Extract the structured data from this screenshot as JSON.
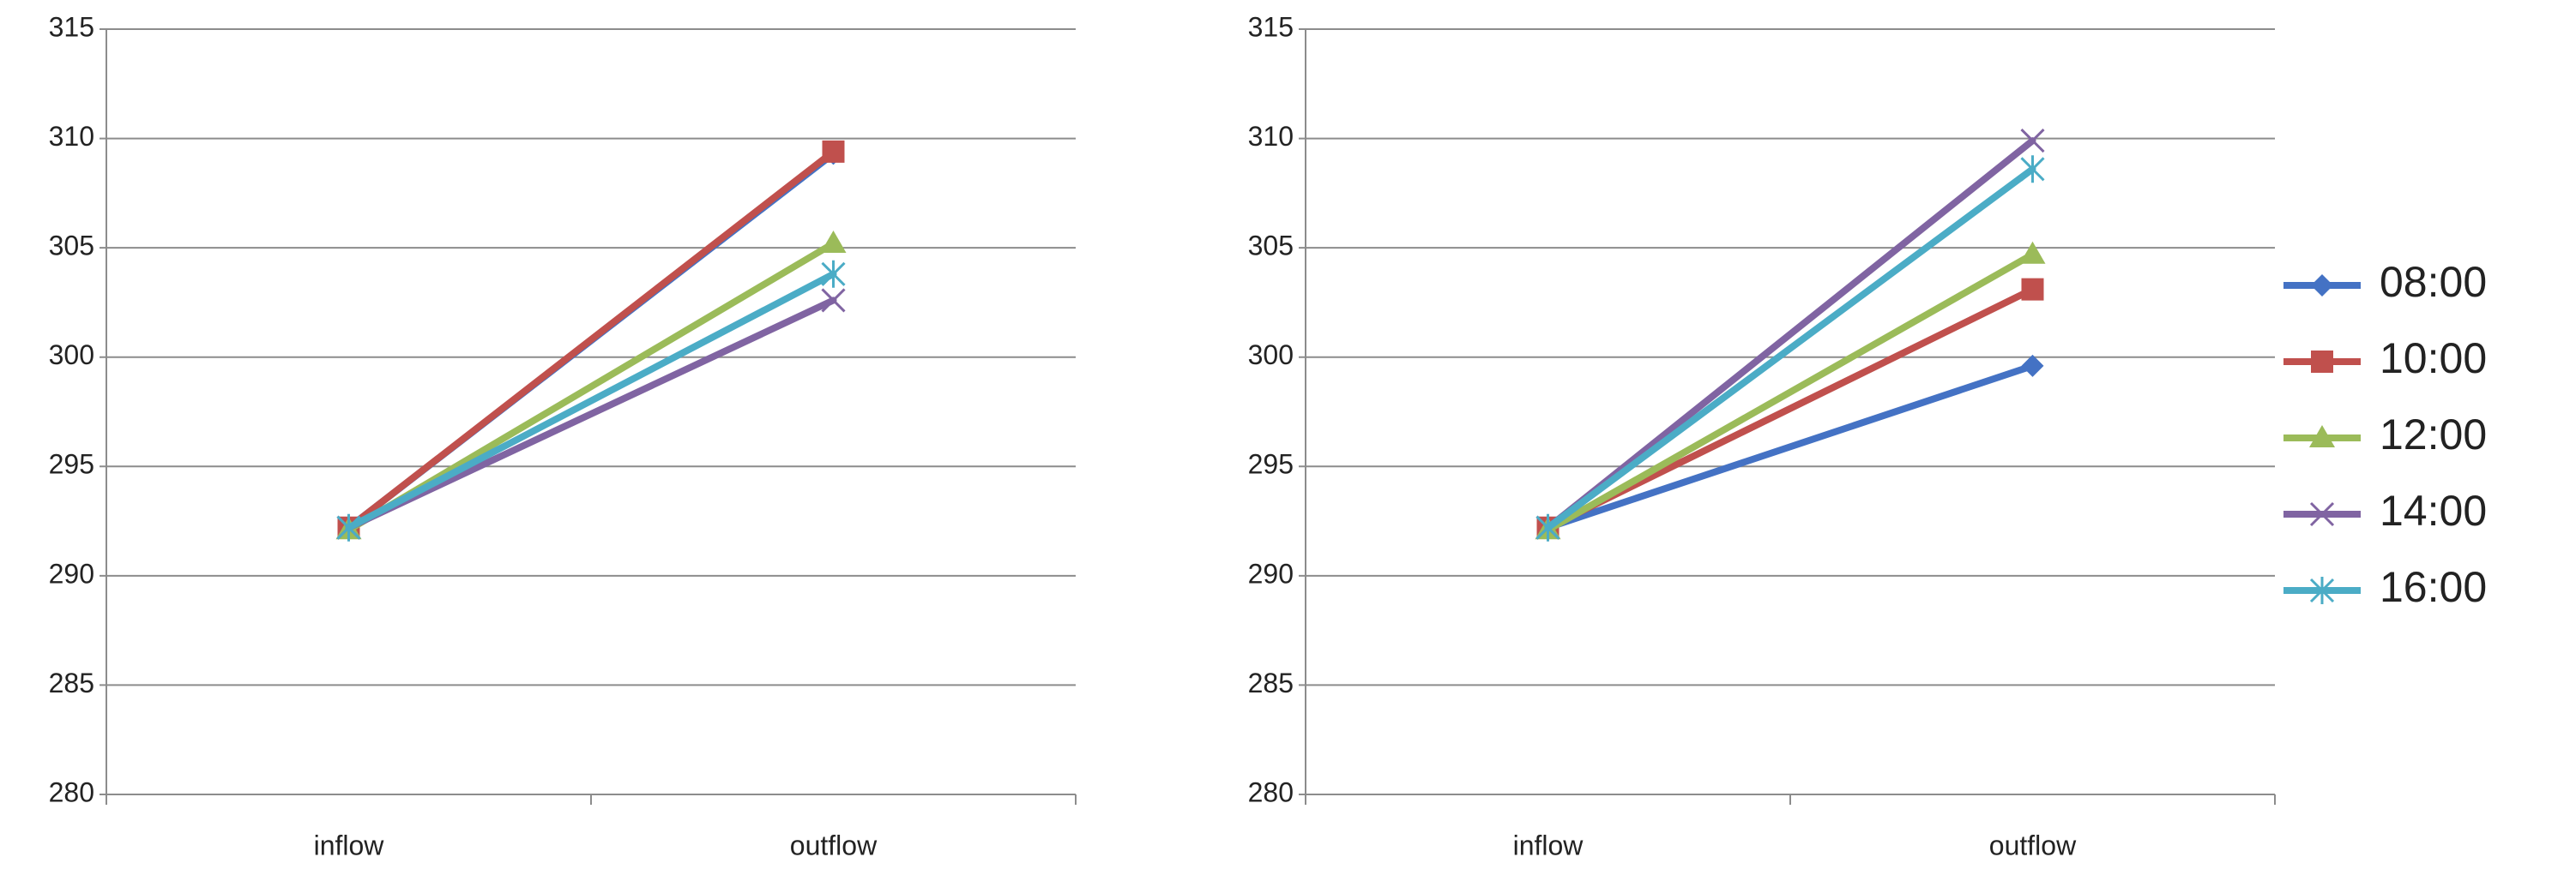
{
  "chart_data": [
    {
      "type": "line",
      "categories": [
        "inflow",
        "outflow"
      ],
      "ylim": [
        280,
        315
      ],
      "yticks": [
        280,
        285,
        290,
        295,
        300,
        305,
        310,
        315
      ],
      "grid": true,
      "series": [
        {
          "color": "#4472c4",
          "marker": "diamond",
          "values": [
            292.2,
            309.3
          ]
        },
        {
          "color": "#c0504d",
          "marker": "square",
          "values": [
            292.2,
            309.4
          ]
        },
        {
          "color": "#9bbb59",
          "marker": "triangle",
          "values": [
            292.1,
            305.2
          ]
        },
        {
          "color": "#8064a2",
          "marker": "x",
          "values": [
            292.2,
            302.6
          ]
        },
        {
          "color": "#4bacc6",
          "marker": "star",
          "values": [
            292.2,
            303.8
          ]
        }
      ]
    },
    {
      "type": "line",
      "categories": [
        "inflow",
        "outflow"
      ],
      "ylim": [
        280,
        315
      ],
      "yticks": [
        280,
        285,
        290,
        295,
        300,
        305,
        310,
        315
      ],
      "grid": true,
      "legend": "right",
      "series": [
        {
          "name": "08:00",
          "color": "#4472c4",
          "marker": "diamond",
          "values": [
            292.2,
            299.6
          ]
        },
        {
          "name": "10:00",
          "color": "#c0504d",
          "marker": "square",
          "values": [
            292.2,
            303.1
          ]
        },
        {
          "name": "12:00",
          "color": "#9bbb59",
          "marker": "triangle",
          "values": [
            292.1,
            304.7
          ]
        },
        {
          "name": "14:00",
          "color": "#8064a2",
          "marker": "x",
          "values": [
            292.2,
            309.9
          ]
        },
        {
          "name": "16:00",
          "color": "#4bacc6",
          "marker": "star",
          "values": [
            292.2,
            308.6
          ]
        }
      ]
    }
  ]
}
